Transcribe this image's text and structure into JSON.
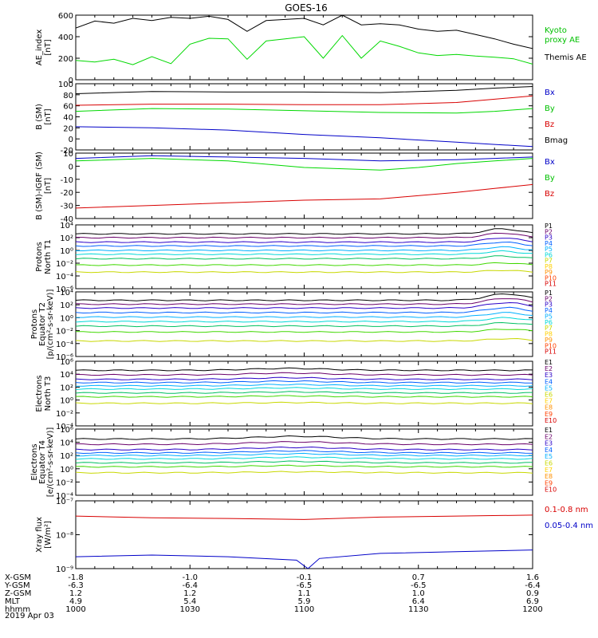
{
  "title": "GOES-16",
  "date_label": "2019 Apr 03",
  "colors": {
    "black": "#000000",
    "green": "#00d800",
    "blue": "#0000c8",
    "red": "#d80000",
    "green_label": "#00c000",
    "blue_label": "#0000c8",
    "red_label": "#d80000",
    "ch": [
      "#000000",
      "#6a006a",
      "#2a00c8",
      "#0060ff",
      "#00b0ff",
      "#00d8d8",
      "#00c060",
      "#40d800",
      "#c8d800",
      "#ffd000",
      "#ff9000",
      "#ff4000",
      "#d80000"
    ]
  },
  "time_axis": {
    "start": "10:00",
    "end": "12:00",
    "rows": [
      {
        "label": "X-GSM",
        "values": [
          "-1.8",
          "-1.0",
          "-0.1",
          "0.7",
          "1.6"
        ]
      },
      {
        "label": "Y-GSM",
        "values": [
          "-6.3",
          "-6.4",
          "-6.5",
          "-6.5",
          "-6.4"
        ]
      },
      {
        "label": "Z-GSM",
        "values": [
          "1.2",
          "1.2",
          "1.1",
          "1.0",
          "0.9"
        ]
      },
      {
        "label": "MLT",
        "values": [
          "4.9",
          "5.4",
          "5.9",
          "6.4",
          "6.9"
        ]
      },
      {
        "label": "hhmm",
        "values": [
          "1000",
          "1030",
          "1100",
          "1130",
          "1200"
        ]
      }
    ]
  },
  "chart_data": [
    {
      "type": "line",
      "ylabel": "AE_index",
      "yunit": "[nT]",
      "ylim": [
        0,
        600
      ],
      "yticks": [
        "0",
        "200",
        "400",
        "600"
      ],
      "legend": [
        {
          "text": "Kyoto",
          "color": "#00c000"
        },
        {
          "text": "proxy AE",
          "color": "#00c000"
        },
        {
          "text": "Themis AE",
          "color": "#000000"
        }
      ],
      "series": [
        {
          "name": "Kyoto proxy AE",
          "color": "#00d800",
          "points": [
            [
              0,
              180
            ],
            [
              5,
              165
            ],
            [
              10,
              190
            ],
            [
              15,
              140
            ],
            [
              20,
              215
            ],
            [
              25,
              150
            ],
            [
              30,
              330
            ],
            [
              35,
              385
            ],
            [
              40,
              380
            ],
            [
              45,
              190
            ],
            [
              50,
              360
            ],
            [
              55,
              380
            ],
            [
              60,
              400
            ],
            [
              65,
              200
            ],
            [
              70,
              410
            ],
            [
              75,
              200
            ],
            [
              80,
              360
            ],
            [
              85,
              310
            ],
            [
              90,
              250
            ],
            [
              95,
              225
            ],
            [
              100,
              235
            ],
            [
              105,
              220
            ],
            [
              110,
              210
            ],
            [
              115,
              195
            ],
            [
              120,
              145
            ]
          ]
        },
        {
          "name": "Themis AE",
          "color": "#000000",
          "points": [
            [
              0,
              480
            ],
            [
              5,
              545
            ],
            [
              10,
              525
            ],
            [
              15,
              570
            ],
            [
              20,
              550
            ],
            [
              25,
              580
            ],
            [
              30,
              570
            ],
            [
              35,
              590
            ],
            [
              40,
              560
            ],
            [
              45,
              450
            ],
            [
              50,
              550
            ],
            [
              55,
              560
            ],
            [
              60,
              570
            ],
            [
              65,
              510
            ],
            [
              70,
              600
            ],
            [
              75,
              510
            ],
            [
              80,
              520
            ],
            [
              85,
              510
            ],
            [
              90,
              470
            ],
            [
              95,
              450
            ],
            [
              100,
              460
            ],
            [
              105,
              420
            ],
            [
              110,
              380
            ],
            [
              115,
              330
            ],
            [
              120,
              290
            ]
          ]
        }
      ]
    },
    {
      "type": "line",
      "ylabel": "B (SM)",
      "yunit": "[nT]",
      "ylim": [
        -20,
        100
      ],
      "yticks": [
        "-20",
        "0",
        "20",
        "40",
        "60",
        "80",
        "100"
      ],
      "legend": [
        {
          "text": "Bx",
          "color": "#0000c8"
        },
        {
          "text": "By",
          "color": "#00c000"
        },
        {
          "text": "Bz",
          "color": "#d80000"
        },
        {
          "text": "Bmag",
          "color": "#000000"
        }
      ],
      "series": [
        {
          "name": "Bmag",
          "color": "#000000",
          "points": [
            [
              0,
              82
            ],
            [
              20,
              86
            ],
            [
              40,
              85
            ],
            [
              60,
              85
            ],
            [
              80,
              84
            ],
            [
              100,
              88
            ],
            [
              110,
              92
            ],
            [
              120,
              95
            ]
          ]
        },
        {
          "name": "Bz",
          "color": "#d80000",
          "points": [
            [
              0,
              61
            ],
            [
              20,
              63
            ],
            [
              40,
              63
            ],
            [
              60,
              62
            ],
            [
              80,
              62
            ],
            [
              100,
              66
            ],
            [
              110,
              72
            ],
            [
              120,
              78
            ]
          ]
        },
        {
          "name": "By",
          "color": "#00d800",
          "points": [
            [
              0,
              50
            ],
            [
              20,
              55
            ],
            [
              40,
              54
            ],
            [
              60,
              51
            ],
            [
              80,
              48
            ],
            [
              100,
              47
            ],
            [
              110,
              50
            ],
            [
              120,
              55
            ]
          ]
        },
        {
          "name": "Bx",
          "color": "#0000c8",
          "points": [
            [
              0,
              22
            ],
            [
              20,
              20
            ],
            [
              40,
              16
            ],
            [
              60,
              8
            ],
            [
              80,
              2
            ],
            [
              100,
              -6
            ],
            [
              110,
              -10
            ],
            [
              120,
              -14
            ]
          ]
        }
      ]
    },
    {
      "type": "line",
      "ylabel": "B (SM)-IGRF (SM)",
      "yunit": "[nT]",
      "ylim": [
        -40,
        10
      ],
      "yticks": [
        "-40",
        "-30",
        "-20",
        "-10",
        "0",
        "10"
      ],
      "legend": [
        {
          "text": "Bx",
          "color": "#0000c8"
        },
        {
          "text": "By",
          "color": "#00c000"
        },
        {
          "text": "Bz",
          "color": "#d80000"
        }
      ],
      "series": [
        {
          "name": "Bx",
          "color": "#0000c8",
          "points": [
            [
              0,
              6
            ],
            [
              20,
              8
            ],
            [
              40,
              7
            ],
            [
              60,
              6
            ],
            [
              80,
              4
            ],
            [
              100,
              5
            ],
            [
              110,
              6
            ],
            [
              120,
              7
            ]
          ]
        },
        {
          "name": "By",
          "color": "#00d800",
          "points": [
            [
              0,
              4
            ],
            [
              20,
              6
            ],
            [
              40,
              4
            ],
            [
              60,
              -1
            ],
            [
              80,
              -3
            ],
            [
              90,
              -1
            ],
            [
              100,
              2
            ],
            [
              110,
              4
            ],
            [
              120,
              6
            ]
          ]
        },
        {
          "name": "Bz",
          "color": "#d80000",
          "points": [
            [
              0,
              -32
            ],
            [
              20,
              -30
            ],
            [
              40,
              -28
            ],
            [
              60,
              -26
            ],
            [
              80,
              -25
            ],
            [
              100,
              -20
            ],
            [
              110,
              -17
            ],
            [
              120,
              -14
            ]
          ]
        }
      ]
    },
    {
      "type": "line",
      "ylabel": "Protons",
      "ylabel2": "North T1",
      "yunit": "",
      "yscale": "log",
      "ylim": [
        -6,
        4
      ],
      "yticks": [
        "10⁻⁶",
        "10⁻⁴",
        "10⁻²",
        "10⁰",
        "10²",
        "10⁴"
      ],
      "legend": [
        {
          "text": "P1",
          "color": "#000000"
        },
        {
          "text": "P2",
          "color": "#6a006a"
        },
        {
          "text": "P3",
          "color": "#2a00c8"
        },
        {
          "text": "P4",
          "color": "#0060ff"
        },
        {
          "text": "P5",
          "color": "#00b0ff"
        },
        {
          "text": "P6",
          "color": "#00d8d8"
        },
        {
          "text": "P7",
          "color": "#c8d800"
        },
        {
          "text": "P8",
          "color": "#ffd000"
        },
        {
          "text": "P9",
          "color": "#ff9000"
        },
        {
          "text": "P10",
          "color": "#ff4000"
        },
        {
          "text": "P11",
          "color": "#d80000"
        }
      ],
      "log_levels": [
        2.6,
        2.0,
        1.3,
        0.7,
        0.0,
        -0.6,
        -1.3,
        -2.3,
        -3.4
      ],
      "bump": {
        "center": 112,
        "width": 6,
        "height": 0.8
      }
    },
    {
      "type": "line",
      "ylabel": "Protons",
      "ylabel2": "Equator T2",
      "yunit": "[p/(cm²-s-sr-keV)]",
      "yscale": "log",
      "ylim": [
        -6,
        4
      ],
      "yticks": [
        "10⁻⁶",
        "10⁻⁴",
        "10⁻²",
        "10⁰",
        "10²",
        "10⁴"
      ],
      "legend": [
        {
          "text": "P1",
          "color": "#000000"
        },
        {
          "text": "P2",
          "color": "#6a006a"
        },
        {
          "text": "P3",
          "color": "#2a00c8"
        },
        {
          "text": "P4",
          "color": "#0060ff"
        },
        {
          "text": "P5",
          "color": "#00b0ff"
        },
        {
          "text": "P6",
          "color": "#00d8d8"
        },
        {
          "text": "P7",
          "color": "#c8d800"
        },
        {
          "text": "P8",
          "color": "#ffd000"
        },
        {
          "text": "P9",
          "color": "#ff9000"
        },
        {
          "text": "P10",
          "color": "#ff4000"
        },
        {
          "text": "P11",
          "color": "#d80000"
        }
      ],
      "log_levels": [
        2.7,
        2.1,
        1.5,
        0.8,
        0.1,
        -0.6,
        -1.3,
        -2.2,
        -3.6
      ],
      "bump": {
        "center": 113,
        "width": 7,
        "height": 1.0
      }
    },
    {
      "type": "line",
      "ylabel": "Electrons",
      "ylabel2": "North T3",
      "yunit": "",
      "yscale": "log",
      "ylim": [
        -4,
        6
      ],
      "yticks": [
        "10⁻⁴",
        "10⁻²",
        "10⁰",
        "10²",
        "10⁴",
        "10⁶"
      ],
      "legend": [
        {
          "text": "E1",
          "color": "#000000"
        },
        {
          "text": "E2",
          "color": "#6a006a"
        },
        {
          "text": "E3",
          "color": "#2a00c8"
        },
        {
          "text": "E4",
          "color": "#0060ff"
        },
        {
          "text": "E5",
          "color": "#00b0ff"
        },
        {
          "text": "E6",
          "color": "#c8d800"
        },
        {
          "text": "E7",
          "color": "#ffd000"
        },
        {
          "text": "E8",
          "color": "#ff9000"
        },
        {
          "text": "E9",
          "color": "#ff4000"
        },
        {
          "text": "E10",
          "color": "#d80000"
        }
      ],
      "log_levels": [
        4.6,
        3.9,
        3.2,
        2.7,
        2.2,
        1.7,
        1.1,
        0.5,
        -0.5
      ],
      "bump": {
        "center": 56,
        "width": 14,
        "height": 0.3
      }
    },
    {
      "type": "line",
      "ylabel": "Electrons",
      "ylabel2": "Equator T4",
      "yunit": "[e/(cm²-s-sr-keV)]",
      "yscale": "log",
      "ylim": [
        -4,
        6
      ],
      "yticks": [
        "10⁻⁴",
        "10⁻²",
        "10⁰",
        "10²",
        "10⁴",
        "10⁶"
      ],
      "legend": [
        {
          "text": "E1",
          "color": "#000000"
        },
        {
          "text": "E2",
          "color": "#6a006a"
        },
        {
          "text": "E3",
          "color": "#2a00c8"
        },
        {
          "text": "E4",
          "color": "#0060ff"
        },
        {
          "text": "E5",
          "color": "#00b0ff"
        },
        {
          "text": "E6",
          "color": "#c8d800"
        },
        {
          "text": "E7",
          "color": "#ffd000"
        },
        {
          "text": "E8",
          "color": "#ff9000"
        },
        {
          "text": "E9",
          "color": "#ff4000"
        },
        {
          "text": "E10",
          "color": "#d80000"
        }
      ],
      "log_levels": [
        4.5,
        3.7,
        2.9,
        2.4,
        2.0,
        1.5,
        0.9,
        0.3,
        -0.6
      ],
      "bump": {
        "center": 58,
        "width": 16,
        "height": 0.4
      }
    },
    {
      "type": "line",
      "ylabel": "Xray flux",
      "yunit": "[W/m²]",
      "yscale": "log",
      "ylim": [
        -9,
        -7
      ],
      "yticks": [
        "10⁻⁹",
        "10⁻⁸",
        "10⁻⁷"
      ],
      "legend": [
        {
          "text": "0.1-0.8 nm",
          "color": "#d80000"
        },
        {
          "text": "0.05-0.4 nm",
          "color": "#0000c8"
        }
      ],
      "series": [
        {
          "name": "0.1-0.8 nm",
          "color": "#d80000",
          "points": [
            [
              0,
              -7.45
            ],
            [
              20,
              -7.5
            ],
            [
              40,
              -7.52
            ],
            [
              60,
              -7.55
            ],
            [
              80,
              -7.48
            ],
            [
              100,
              -7.45
            ],
            [
              120,
              -7.42
            ]
          ]
        },
        {
          "name": "0.05-0.4 nm",
          "color": "#0000c8",
          "points": [
            [
              0,
              -8.65
            ],
            [
              20,
              -8.6
            ],
            [
              40,
              -8.65
            ],
            [
              58,
              -8.75
            ],
            [
              61,
              -9.0
            ],
            [
              64,
              -8.7
            ],
            [
              80,
              -8.55
            ],
            [
              100,
              -8.5
            ],
            [
              120,
              -8.45
            ]
          ]
        }
      ]
    }
  ]
}
